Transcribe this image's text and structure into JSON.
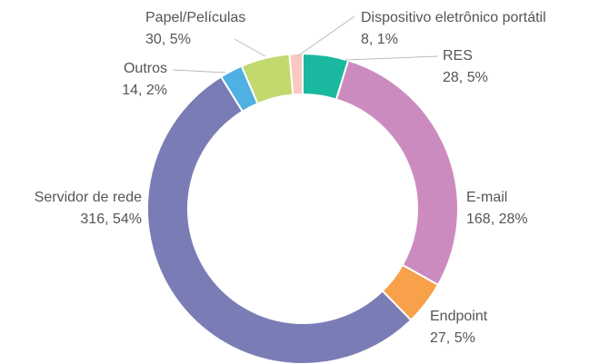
{
  "chart_data": {
    "type": "donut",
    "categories": [
      "RES",
      "E-mail",
      "Endpoint",
      "Servidor de rede",
      "Outros",
      "Papel/Películas",
      "Dispositivo eletrônico portátil"
    ],
    "values": [
      28,
      168,
      27,
      316,
      14,
      30,
      8
    ],
    "value_labels": [
      "28, 5%",
      "168, 28%",
      "27, 5%",
      "316, 54%",
      "14, 2%",
      "30, 5%",
      "8, 1%"
    ],
    "colors": [
      "#1ab89e",
      "#cc8bbf",
      "#f7a14a",
      "#7a7db5",
      "#4fb0e3",
      "#c2d96e",
      "#f9c8c0"
    ]
  }
}
